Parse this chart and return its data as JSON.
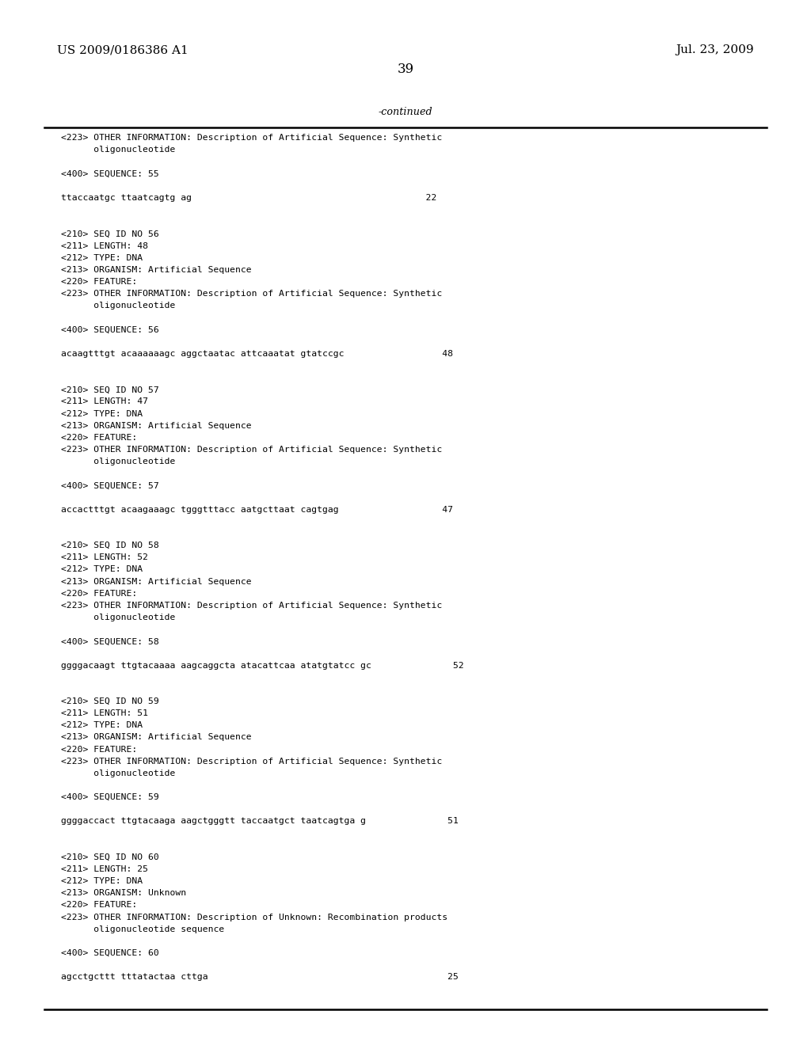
{
  "background_color": "#ffffff",
  "top_left_text": "US 2009/0186386 A1",
  "top_right_text": "Jul. 23, 2009",
  "page_number": "39",
  "continued_label": "-continued",
  "content_lines": [
    "<223> OTHER INFORMATION: Description of Artificial Sequence: Synthetic",
    "      oligonucleotide",
    "",
    "<400> SEQUENCE: 55",
    "",
    "ttaccaatgc ttaatcagtg ag                                           22",
    "",
    "",
    "<210> SEQ ID NO 56",
    "<211> LENGTH: 48",
    "<212> TYPE: DNA",
    "<213> ORGANISM: Artificial Sequence",
    "<220> FEATURE:",
    "<223> OTHER INFORMATION: Description of Artificial Sequence: Synthetic",
    "      oligonucleotide",
    "",
    "<400> SEQUENCE: 56",
    "",
    "acaagtttgt acaaaaaagc aggctaatac attcaaatat gtatccgc                  48",
    "",
    "",
    "<210> SEQ ID NO 57",
    "<211> LENGTH: 47",
    "<212> TYPE: DNA",
    "<213> ORGANISM: Artificial Sequence",
    "<220> FEATURE:",
    "<223> OTHER INFORMATION: Description of Artificial Sequence: Synthetic",
    "      oligonucleotide",
    "",
    "<400> SEQUENCE: 57",
    "",
    "accactttgt acaagaaagc tgggtttacc aatgcttaat cagtgag                   47",
    "",
    "",
    "<210> SEQ ID NO 58",
    "<211> LENGTH: 52",
    "<212> TYPE: DNA",
    "<213> ORGANISM: Artificial Sequence",
    "<220> FEATURE:",
    "<223> OTHER INFORMATION: Description of Artificial Sequence: Synthetic",
    "      oligonucleotide",
    "",
    "<400> SEQUENCE: 58",
    "",
    "ggggacaagt ttgtacaaaa aagcaggcta atacattcaa atatgtatcc gc               52",
    "",
    "",
    "<210> SEQ ID NO 59",
    "<211> LENGTH: 51",
    "<212> TYPE: DNA",
    "<213> ORGANISM: Artificial Sequence",
    "<220> FEATURE:",
    "<223> OTHER INFORMATION: Description of Artificial Sequence: Synthetic",
    "      oligonucleotide",
    "",
    "<400> SEQUENCE: 59",
    "",
    "ggggaccact ttgtacaaga aagctgggtt taccaatgct taatcagtga g               51",
    "",
    "",
    "<210> SEQ ID NO 60",
    "<211> LENGTH: 25",
    "<212> TYPE: DNA",
    "<213> ORGANISM: Unknown",
    "<220> FEATURE:",
    "<223> OTHER INFORMATION: Description of Unknown: Recombination products",
    "      oligonucleotide sequence",
    "",
    "<400> SEQUENCE: 60",
    "",
    "agcctgcttt tttatactaa cttga                                            25"
  ],
  "mono_fontsize": 8.2,
  "header_fontsize": 11,
  "page_num_fontsize": 12
}
